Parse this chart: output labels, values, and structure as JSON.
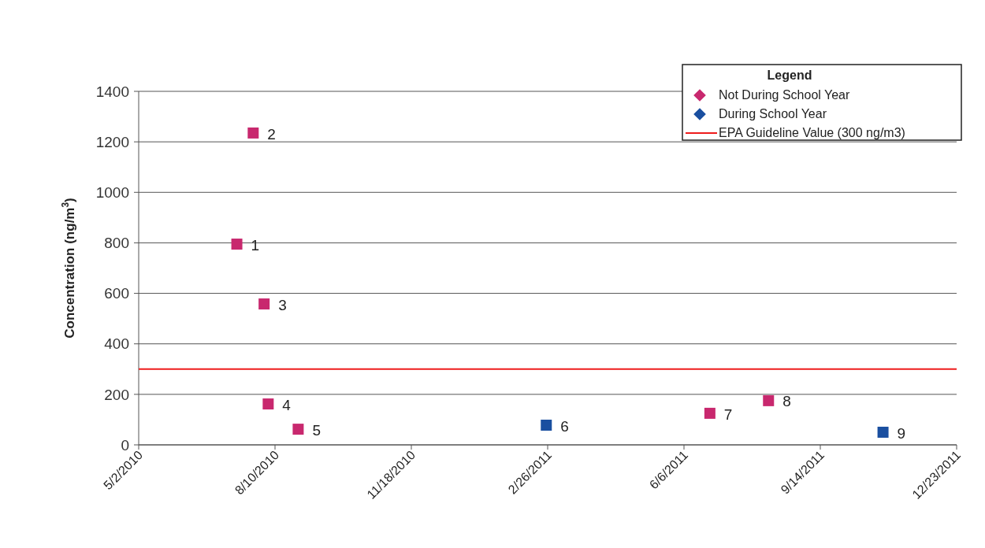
{
  "chart_data": {
    "type": "scatter",
    "ylabel": "Concentration (ng/m$^{3}$)",
    "legend_title": "Legend",
    "legend": "top right",
    "grid": "y",
    "marker": "square",
    "series": [
      {
        "name": "Not During School Year",
        "color": "#c8286e",
        "x": [
          "2010-07-13",
          "2010-07-25",
          "2010-08-02",
          "2010-08-05",
          "2010-08-27",
          "2011-06-25",
          "2011-08-07"
        ],
        "values": [
          795,
          1235,
          558,
          162,
          62,
          125,
          175
        ]
      },
      {
        "name": "During School Year",
        "color": "#1a4fa0",
        "x": [
          "2011-02-25",
          "2011-10-30"
        ],
        "values": [
          78,
          50
        ]
      }
    ],
    "xlim": [
      "2010-05-02",
      "2011-12-23"
    ],
    "xticks": [
      {
        "value": "2010-05-02",
        "label": "5/2/2010"
      },
      {
        "value": "2010-08-10",
        "label": "8/10/2010"
      },
      {
        "value": "2010-11-18",
        "label": "11/18/2010"
      },
      {
        "value": "2011-02-26",
        "label": "2/26/2011"
      },
      {
        "value": "2011-06-06",
        "label": "6/6/2011"
      },
      {
        "value": "2011-09-14",
        "label": "9/14/2011"
      },
      {
        "value": "2011-12-23",
        "label": "12/23/2011"
      }
    ],
    "ylim": [
      0,
      1400
    ],
    "yticks": [
      0,
      200,
      400,
      600,
      800,
      1000,
      1200,
      1400
    ],
    "ref_lines": [
      {
        "axis": "y",
        "value": 300,
        "label": "EPA Guideline Value (300 ng/m3)",
        "color": "#ee1c1c"
      }
    ],
    "annotations": [
      {
        "text": "1",
        "x": "2010-07-13",
        "y": 795
      },
      {
        "text": "2",
        "x": "2010-07-25",
        "y": 1235
      },
      {
        "text": "3",
        "x": "2010-08-02",
        "y": 558
      },
      {
        "text": "4",
        "x": "2010-08-05",
        "y": 162
      },
      {
        "text": "5",
        "x": "2010-08-27",
        "y": 62
      },
      {
        "text": "6",
        "x": "2011-02-25",
        "y": 78
      },
      {
        "text": "7",
        "x": "2011-06-25",
        "y": 125
      },
      {
        "text": "8",
        "x": "2011-08-07",
        "y": 175
      },
      {
        "text": "9",
        "x": "2011-10-30",
        "y": 50
      }
    ]
  }
}
